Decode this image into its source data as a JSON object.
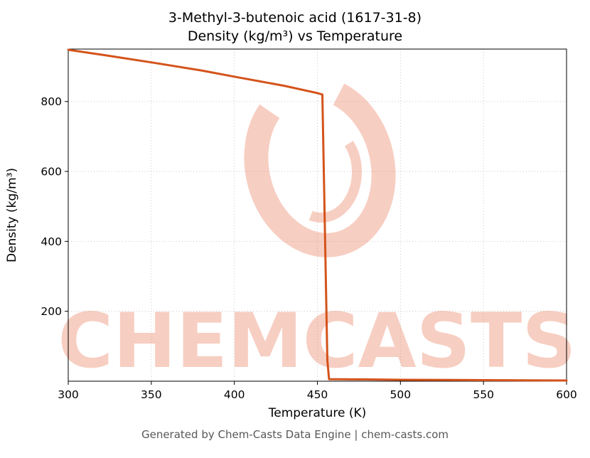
{
  "chart_data": {
    "type": "line",
    "title": "3-Methyl-3-butenoic acid (1617-31-8)",
    "subtitle": "Density (kg/m³) vs Temperature",
    "xlabel": "Temperature (K)",
    "ylabel": "Density (kg/m³)",
    "xlim": [
      300,
      600
    ],
    "ylim": [
      0,
      950
    ],
    "x_ticks": [
      300,
      350,
      400,
      450,
      500,
      550,
      600
    ],
    "y_ticks": [
      200,
      400,
      600,
      800
    ],
    "grid": true,
    "legend": false,
    "line_color": "#d4531b",
    "series": [
      {
        "name": "density",
        "points": [
          [
            300,
            948
          ],
          [
            320,
            934
          ],
          [
            350,
            912
          ],
          [
            380,
            889
          ],
          [
            400,
            871
          ],
          [
            430,
            845
          ],
          [
            450,
            824
          ],
          [
            453,
            820
          ],
          [
            456,
            60
          ],
          [
            457,
            6
          ],
          [
            480,
            5
          ],
          [
            500,
            4
          ],
          [
            550,
            3
          ],
          [
            600,
            2
          ]
        ]
      }
    ]
  },
  "watermark": {
    "text": "CHEMCASTS",
    "color": "#e8613a"
  },
  "footer": {
    "text": "Generated by Chem-Casts Data Engine | chem-casts.com"
  }
}
